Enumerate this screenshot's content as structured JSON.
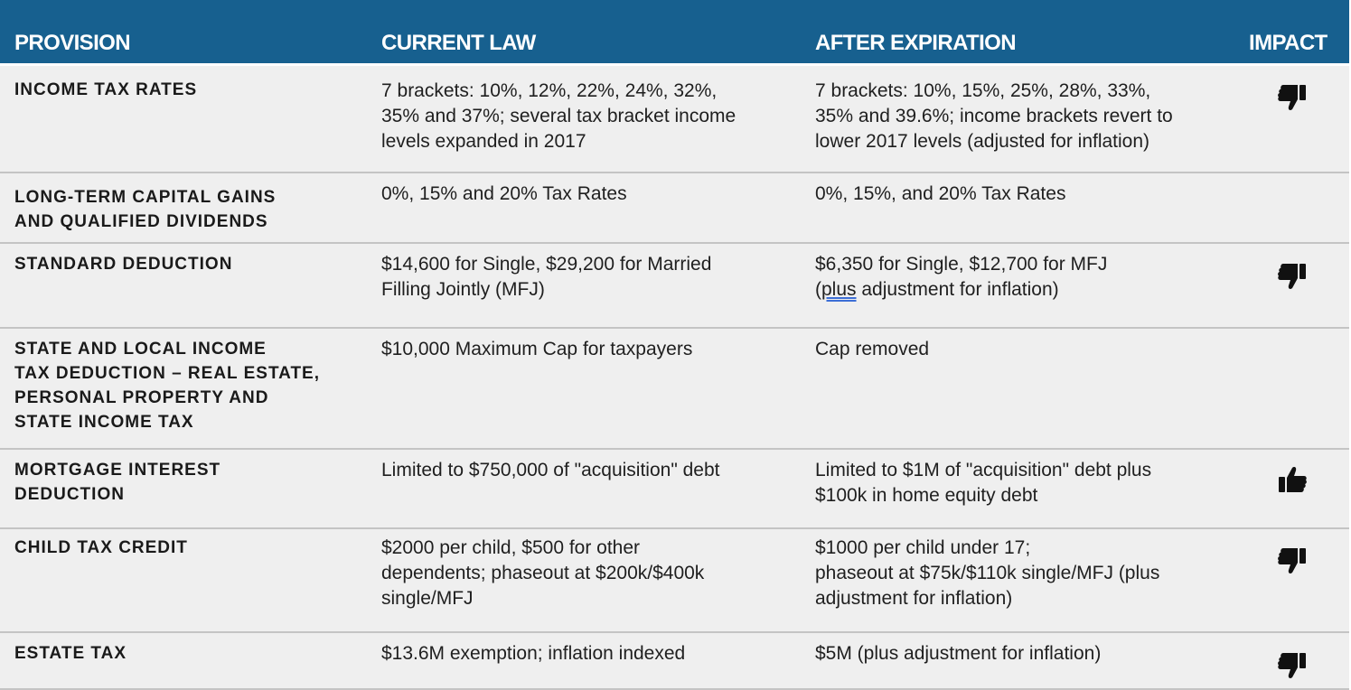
{
  "header": {
    "provision": "PROVISION",
    "current_law": "CURRENT LAW",
    "after_expiration": "AFTER EXPIRATION",
    "impact": "IMPACT"
  },
  "colors": {
    "header_bg": "#17608f",
    "row_bg": "#efefef",
    "divider": "#c4c4c4",
    "icon": "#111111"
  },
  "rows": [
    {
      "provision": "INCOME TAX RATES",
      "current_law": "7 brackets: 10%, 12%, 22%, 24%, 32%,\n35% and 37%; several tax bracket income\nlevels expanded in 2017",
      "after_expiration": "7 brackets: 10%, 15%, 25%, 28%, 33%,\n35% and 39.6%; income brackets revert to\nlower 2017 levels (adjusted for inflation)",
      "impact": "thumbs-down-icon"
    },
    {
      "provision": "LONG-TERM CAPITAL GAINS\nAND QUALIFIED DIVIDENDS",
      "current_law": "0%, 15% and 20% Tax Rates",
      "after_expiration": "0%, 15%, and 20% Tax Rates",
      "impact": ""
    },
    {
      "provision": "STANDARD DEDUCTION",
      "current_law": "$14,600 for Single, $29,200 for Married\nFilling Jointly (MFJ)",
      "after_expiration_line1": "$6,350 for Single, $12,700 for MFJ",
      "after_expiration_open": "(",
      "after_expiration_word": "plus",
      "after_expiration_rest": " adjustment for inflation)",
      "impact": "thumbs-down-icon"
    },
    {
      "provision": "STATE AND LOCAL INCOME\nTAX DEDUCTION – REAL ESTATE,\nPERSONAL PROPERTY AND\nSTATE INCOME TAX",
      "current_law": "$10,000 Maximum Cap for taxpayers",
      "after_expiration": "Cap removed",
      "impact": ""
    },
    {
      "provision": "MORTGAGE INTEREST\nDEDUCTION",
      "current_law": "Limited to $750,000 of \"acquisition\" debt",
      "after_expiration": "Limited to $1M of \"acquisition\" debt plus\n$100k in home equity debt",
      "impact": "thumbs-up-icon"
    },
    {
      "provision": "CHILD TAX CREDIT",
      "current_law": "$2000 per child, $500 for other\ndependents; phaseout at $200k/$400k\nsingle/MFJ",
      "after_expiration": "$1000 per child under 17;\nphaseout at $75k/$110k single/MFJ (plus\nadjustment for inflation)",
      "impact": "thumbs-down-icon"
    },
    {
      "provision": "ESTATE TAX",
      "current_law": "$13.6M exemption; inflation indexed",
      "after_expiration": "$5M (plus adjustment for inflation)",
      "impact": "thumbs-down-icon"
    }
  ]
}
